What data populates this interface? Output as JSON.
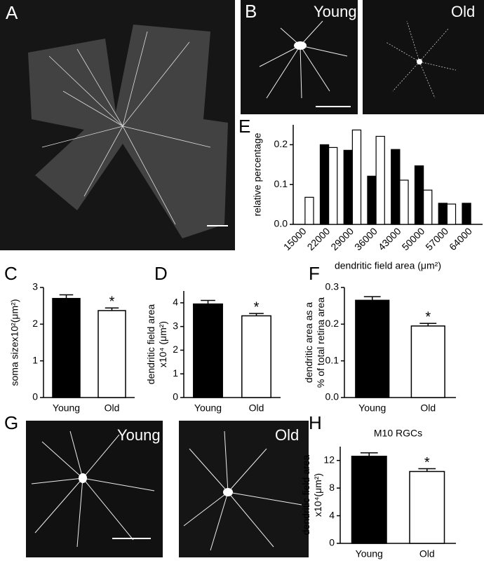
{
  "panel_labels": [
    "A",
    "B",
    "C",
    "D",
    "E",
    "F",
    "G",
    "H"
  ],
  "image_labels": [
    "Young",
    "Old",
    "Young",
    "Old"
  ],
  "chart_data": [
    {
      "type": "bar",
      "ylabel": "relative percentage",
      "xlabel": "dendritic field area (μm²)",
      "categories": [
        "15000",
        "22000",
        "29000",
        "36000",
        "43000",
        "50000",
        "57000",
        "64000"
      ],
      "series": [
        {
          "color": "#000000",
          "values": [
            0,
            0.2,
            0.186,
            0.121,
            0.188,
            0.147,
            0.053,
            0.053
          ]
        },
        {
          "color": "#ffffff",
          "values": [
            0.068,
            0.193,
            0.237,
            0.221,
            0.111,
            0.086,
            0.051,
            0
          ]
        }
      ],
      "ylim": [
        0,
        0.25
      ],
      "yticks": [
        {
          "value": 0,
          "label": "0.0"
        },
        0.1,
        0.2
      ]
    },
    {
      "type": "bar",
      "ylabel": [
        "soma sizex10²(μm²)"
      ],
      "categories": [
        "Young",
        "Old"
      ],
      "values": [
        2.7,
        2.37
      ],
      "errors": [
        0.1,
        0.07
      ],
      "colors": [
        "#000000",
        "#ffffff"
      ],
      "annotation": "*",
      "ylim": [
        0,
        3
      ],
      "yticks": [
        0,
        1,
        2,
        3
      ]
    },
    {
      "type": "bar",
      "ylabel": [
        "dendritic field area",
        "x10⁴ (μm²)"
      ],
      "categories": [
        "Young",
        "Old"
      ],
      "values": [
        3.95,
        3.45
      ],
      "errors": [
        0.15,
        0.1
      ],
      "colors": [
        "#000000",
        "#ffffff"
      ],
      "annotation": "*",
      "ylim": [
        0,
        4.5
      ],
      "yticks": [
        0,
        1,
        2,
        3,
        4
      ]
    },
    {
      "type": "bar",
      "ylabel": [
        "dendritic area as a",
        "% of total retina area"
      ],
      "categories": [
        "Young",
        "Old"
      ],
      "values": [
        0.265,
        0.195
      ],
      "errors": [
        0.01,
        0.007
      ],
      "colors": [
        "#000000",
        "#ffffff"
      ],
      "annotation": "*",
      "ylim": [
        0,
        0.3
      ],
      "yticks": [
        {
          "value": 0,
          "label": "0.0"
        },
        0.1,
        0.2,
        0.3
      ]
    },
    {
      "type": "bar",
      "title": "M10  RGCs",
      "ylabel": [
        "dendritic field area",
        "x10⁴(μm²)"
      ],
      "categories": [
        "Young",
        "Old"
      ],
      "values": [
        12.6,
        10.4
      ],
      "errors": [
        0.5,
        0.4
      ],
      "colors": [
        "#000000",
        "#ffffff"
      ],
      "annotation": "*",
      "ylim": [
        0,
        14
      ],
      "yticks": [
        0,
        4,
        8,
        12
      ]
    }
  ]
}
